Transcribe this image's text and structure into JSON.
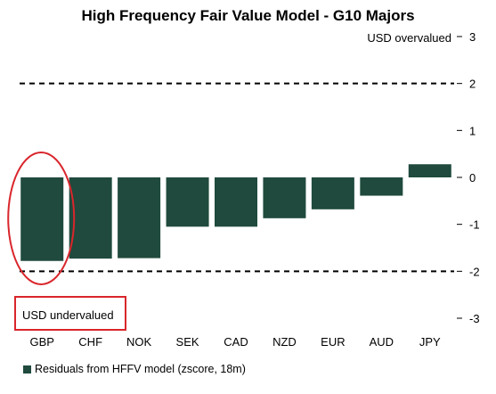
{
  "chart_data": {
    "type": "bar",
    "title": "High Frequency Fair Value Model - G10 Majors",
    "categories": [
      "GBP",
      "CHF",
      "NOK",
      "SEK",
      "CAD",
      "NZD",
      "EUR",
      "AUD",
      "JPY"
    ],
    "series": [
      {
        "name": "Residuals from HFFV model (zscore, 18m)",
        "values": [
          -1.78,
          -1.73,
          -1.72,
          -1.05,
          -1.05,
          -0.87,
          -0.68,
          -0.39,
          0.28
        ]
      }
    ],
    "ylim": [
      -3,
      3
    ],
    "yticks": [
      3,
      2,
      1,
      0,
      -1,
      -2,
      -3
    ],
    "y_axis_side": "right",
    "grid": false,
    "reference_lines": [
      2,
      -2
    ],
    "bar_color": "#1f4a3d",
    "annotations": {
      "top": "USD overvalued",
      "bottom": "USD undervalued",
      "highlight_color": "#d9262c",
      "highlighted_category": "GBP"
    },
    "legend": {
      "position": "bottom-left",
      "label": "Residuals from HFFV model (zscore, 18m)"
    }
  }
}
